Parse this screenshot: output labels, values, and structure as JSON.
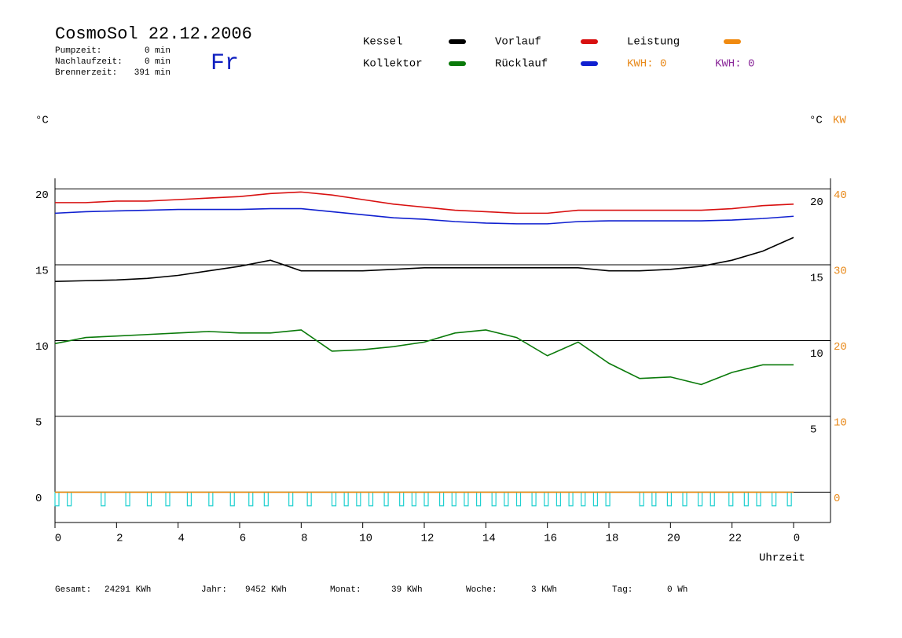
{
  "header": {
    "title": "CosmoSol 22.12.2006",
    "day": "Fr",
    "stats": [
      {
        "label": "Pumpzeit:",
        "value": "0 min"
      },
      {
        "label": "Nachlaufzeit:",
        "value": "0 min"
      },
      {
        "label": "Brennerzeit:",
        "value": "391 min"
      }
    ]
  },
  "footer": [
    {
      "label": "Gesamt:",
      "value": "24291 KWh"
    },
    {
      "label": "Jahr:",
      "value": "9452 KWh"
    },
    {
      "label": "Monat:",
      "value": "39 KWh"
    },
    {
      "label": "Woche:",
      "value": "3 KWh"
    },
    {
      "label": "Tag:",
      "value": "0 Wh"
    }
  ],
  "chart_data": {
    "type": "line",
    "ylabel": "°C",
    "y3label": "°C",
    "y2label": "KW",
    "xlabel": "Uhrzeit",
    "kwh_labels": [
      {
        "text": "KWH: 0",
        "color": "#e8891a"
      },
      {
        "text": "KWH: 0",
        "color": "#8b2a9a"
      }
    ],
    "x": [
      0,
      1,
      2,
      3,
      4,
      5,
      6,
      7,
      8,
      9,
      10,
      11,
      12,
      13,
      14,
      15,
      16,
      17,
      18,
      19,
      20,
      21,
      22,
      23,
      24
    ],
    "xlim": [
      0,
      24
    ],
    "xticks": [
      0,
      2,
      4,
      6,
      8,
      10,
      12,
      14,
      16,
      18,
      20,
      22,
      {
        "value": 24,
        "label": "0"
      }
    ],
    "ylim": [
      -2,
      20.7
    ],
    "yticks": [
      0,
      5,
      10,
      15,
      20
    ],
    "y3ticks": [
      5,
      10,
      15,
      20
    ],
    "y2lim": [
      -4,
      41.4
    ],
    "y2ticks": [
      0,
      10,
      20,
      30,
      40
    ],
    "grid": true,
    "series": [
      {
        "name": "Kessel",
        "color": "#000000",
        "values": [
          13.9,
          13.95,
          14.0,
          14.1,
          14.3,
          14.6,
          14.9,
          15.3,
          14.6,
          14.6,
          14.6,
          14.7,
          14.8,
          14.8,
          14.8,
          14.8,
          14.8,
          14.8,
          14.6,
          14.6,
          14.7,
          14.9,
          15.3,
          15.9,
          16.8
        ]
      },
      {
        "name": "Kollektor",
        "color": "#0a7a0a",
        "values": [
          9.8,
          10.2,
          10.3,
          10.4,
          10.5,
          10.6,
          10.5,
          10.5,
          10.7,
          9.3,
          9.4,
          9.6,
          9.9,
          10.5,
          10.7,
          10.2,
          9.0,
          9.9,
          8.5,
          7.5,
          7.6,
          7.1,
          7.9,
          8.4,
          8.4
        ]
      },
      {
        "name": "Vorlauf",
        "color": "#d81010",
        "values": [
          19.1,
          19.1,
          19.2,
          19.2,
          19.3,
          19.4,
          19.5,
          19.7,
          19.8,
          19.6,
          19.3,
          19.0,
          18.8,
          18.6,
          18.5,
          18.4,
          18.4,
          18.6,
          18.6,
          18.6,
          18.6,
          18.6,
          18.7,
          18.9,
          19.0
        ]
      },
      {
        "name": "Rücklauf",
        "color": "#1020d0",
        "values": [
          18.4,
          18.5,
          18.55,
          18.6,
          18.65,
          18.65,
          18.65,
          18.7,
          18.7,
          18.5,
          18.3,
          18.1,
          18.0,
          17.85,
          17.75,
          17.7,
          17.7,
          17.85,
          17.9,
          17.9,
          17.9,
          17.9,
          17.95,
          18.05,
          18.2
        ]
      },
      {
        "name": "Leistung",
        "color": "#f08a10",
        "axis": "y2",
        "values": [
          0,
          0,
          0,
          0,
          0,
          0,
          0,
          0,
          0,
          0,
          0,
          0,
          0,
          0,
          0,
          0,
          0,
          0,
          0,
          0,
          0,
          0,
          0,
          0,
          0
        ]
      }
    ],
    "pulses": {
      "color": "#20d0d0",
      "x": [
        0.0,
        0.4,
        1.5,
        2.3,
        3.0,
        3.6,
        4.3,
        5.0,
        5.7,
        6.3,
        6.8,
        7.6,
        8.2,
        9.0,
        9.4,
        9.8,
        10.2,
        10.7,
        11.2,
        11.6,
        12.0,
        12.5,
        12.9,
        13.3,
        13.7,
        14.2,
        14.6,
        15.0,
        15.5,
        15.9,
        16.3,
        16.7,
        17.1,
        17.5,
        17.9,
        19.0,
        19.4,
        19.9,
        20.4,
        20.9,
        21.3,
        21.9,
        22.4,
        22.8,
        23.3,
        23.8
      ],
      "values": [
        -0.9,
        -0.9,
        -0.9,
        -0.9,
        -0.9,
        -0.9,
        -0.9,
        -0.9,
        -0.9,
        -0.9,
        -0.9,
        -0.9,
        -0.9,
        -0.9,
        -0.9,
        -0.9,
        -0.9,
        -0.9,
        -0.9,
        -0.9,
        -0.9,
        -0.9,
        -0.9,
        -0.9,
        -0.9,
        -0.9,
        -0.9,
        -0.9,
        -0.9,
        -0.9,
        -0.9,
        -0.9,
        -0.9,
        -0.9,
        -0.9,
        -0.9,
        -0.9,
        -0.9,
        -0.9,
        -0.9,
        -0.9,
        -0.9,
        -0.9,
        -0.9,
        -0.9,
        -0.9
      ]
    }
  }
}
